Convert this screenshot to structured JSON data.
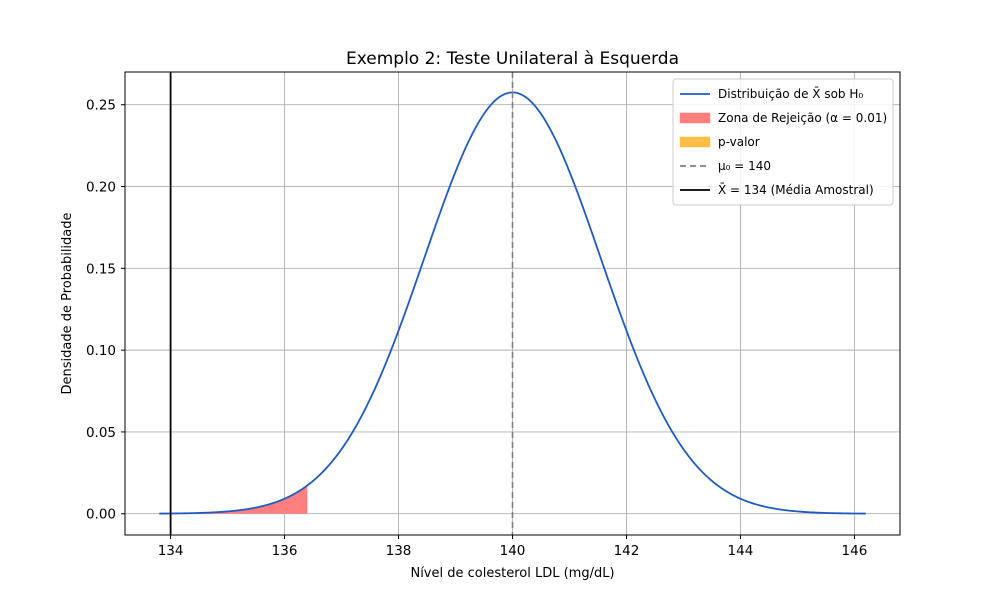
{
  "chart_data": {
    "type": "line",
    "title": "Exemplo 2: Teste Unilateral à Esquerda",
    "xlabel": "Nível de colesterol LDL (mg/dL)",
    "ylabel": "Densidade de Probabilidade",
    "xlim": [
      133.2,
      146.8
    ],
    "ylim": [
      -0.013,
      0.27
    ],
    "grid": true,
    "legend_position": "top-right",
    "x_ticks": [
      134,
      136,
      138,
      140,
      142,
      144,
      146
    ],
    "y_ticks": [
      0.0,
      0.05,
      0.1,
      0.15,
      0.2,
      0.25
    ],
    "x_tick_labels": [
      "134",
      "136",
      "138",
      "140",
      "142",
      "144",
      "146"
    ],
    "y_tick_labels": [
      "0.00",
      "0.05",
      "0.10",
      "0.15",
      "0.20",
      "0.25"
    ],
    "distribution": {
      "mean": 140,
      "std": 1.549,
      "x_range": [
        133.8,
        146.2
      ],
      "peak_density": 0.2575
    },
    "rejection_zone": {
      "x_start": 133.8,
      "x_end": 136.4,
      "alpha": 0.01
    },
    "mu0": 140,
    "sample_mean": 134,
    "series": [
      {
        "kind": "line",
        "name": "Distribuição de X̄ sob H₀",
        "color": "#1f5bc4"
      },
      {
        "kind": "patch",
        "name": "Zona de Rejeição (α = 0.01)",
        "color": "#ff7f7f"
      },
      {
        "kind": "patch",
        "name": "p-valor",
        "color": "#ffbe45"
      },
      {
        "kind": "dashed",
        "name": "μ₀ = 140",
        "color": "#808080"
      },
      {
        "kind": "vline",
        "name": "X̄ = 134 (Média Amostral)",
        "color": "#000000"
      }
    ]
  }
}
